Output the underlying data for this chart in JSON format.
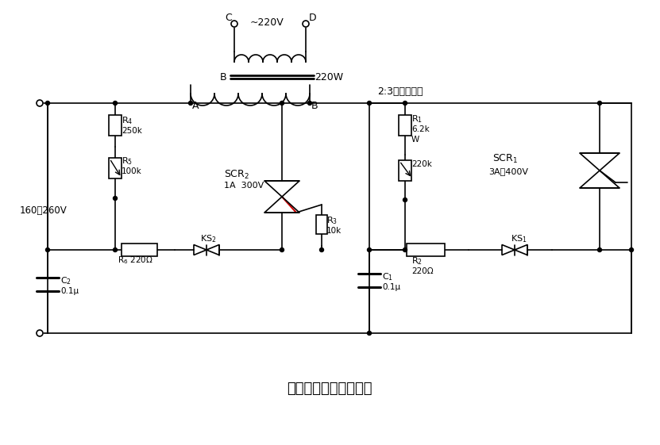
{
  "title": "双向可控硬交流稳压器",
  "background": "#ffffff",
  "line_color": "#000000",
  "line_width": 1.2,
  "fig_width": 8.31,
  "fig_height": 5.61,
  "transformer_label": "2:3升压变压器",
  "label_160_260": "160～260V",
  "label_scr2": "SCR$_2$",
  "label_scr2_spec": "1A  300V",
  "label_scr1": "SCR$_1$",
  "label_scr1_spec": "3A、400V"
}
